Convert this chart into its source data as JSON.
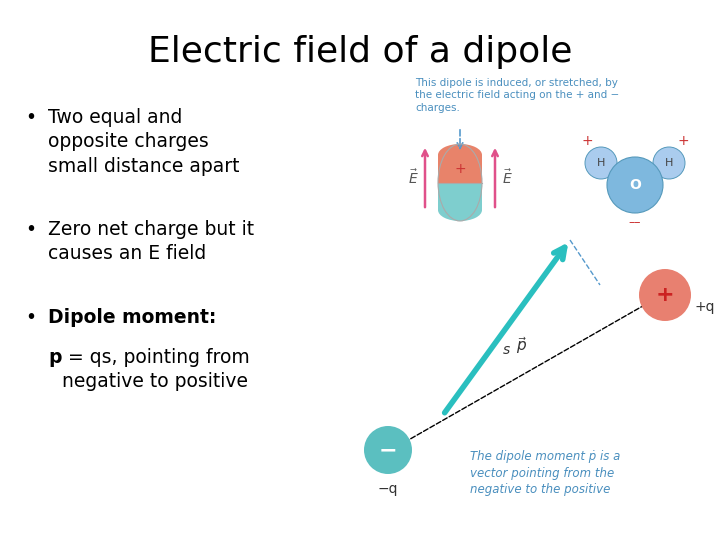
{
  "title": "Electric field of a dipole",
  "title_fontsize": 26,
  "title_fontfamily": "DejaVu Sans",
  "bg_color": "#ffffff",
  "text_color": "#000000",
  "top_caption_color": "#4a8fbe",
  "top_caption": "This dipole is induced, or stretched, by\nthe electric field acting on the + and −\ncharges.",
  "bottom_caption_color": "#4a8fbe",
  "bottom_caption": "The dipole moment ṗ is a\nvector pointing from the\nnegative to the positive",
  "bullet1": "Two equal and\nopposite charges\nsmall distance apart",
  "bullet2": "Zero net charge but it\ncauses an E field",
  "bullet3": "Dipole moment:",
  "p_bold": "p",
  "p_rest": " = qs, pointing from\nnegative to positive"
}
